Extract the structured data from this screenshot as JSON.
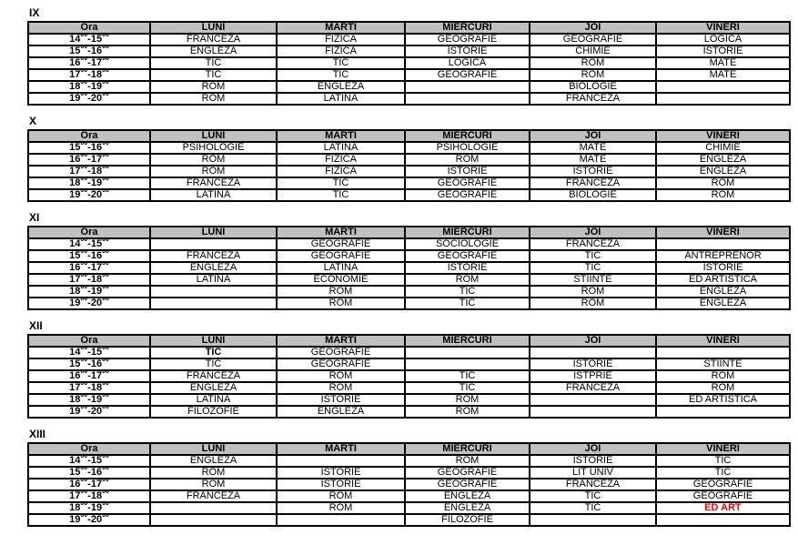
{
  "document": {
    "colors": {
      "header_bg": "#c0c0c0",
      "accent_red": "#ff0000",
      "border": "#000000",
      "text": "#000000"
    },
    "columns": [
      {
        "key": "ora",
        "label": "Ora"
      },
      {
        "key": "luni",
        "label": "LUNI"
      },
      {
        "key": "marti",
        "label": "MARTI"
      },
      {
        "key": "miercuri",
        "label": "MIERCURI"
      },
      {
        "key": "joi",
        "label": "JOI"
      },
      {
        "key": "vineri",
        "label": "VINERI"
      }
    ],
    "time_superscript": "00",
    "time_separator": "-",
    "tables": [
      {
        "label": "IX",
        "rows": [
          {
            "from": "14",
            "to": "15",
            "subjects": [
              "FRANCEZA",
              "FIZICA",
              "GEOGRAFIE",
              "GEOGRAFIE",
              "LOGICA"
            ]
          },
          {
            "from": "15",
            "to": "16",
            "subjects": [
              "ENGLEZA",
              "FIZICA",
              "ISTORIE",
              "CHIMIE",
              "ISTORIE"
            ]
          },
          {
            "from": "16",
            "to": "17",
            "subjects": [
              "TIC",
              "TIC",
              "LOGICA",
              "ROM",
              "MATE"
            ]
          },
          {
            "from": "17",
            "to": "18",
            "subjects": [
              "TIC",
              "TIC",
              "GEOGRAFIE",
              "ROM",
              "MATE"
            ]
          },
          {
            "from": "18",
            "to": "19",
            "subjects": [
              "ROM",
              "ENGLEZA",
              "",
              "BIOLOGIE",
              ""
            ]
          },
          {
            "from": "19",
            "to": "20",
            "subjects": [
              "ROM",
              "LATINA",
              "",
              "FRANCEZA",
              ""
            ]
          }
        ],
        "overrides": []
      },
      {
        "label": "X",
        "rows": [
          {
            "from": "15",
            "to": "16",
            "subjects": [
              "PSIHOLOGIE",
              "LATINA",
              "PSIHOLOGIE",
              "MATE",
              "CHIMIE"
            ]
          },
          {
            "from": "16",
            "to": "17",
            "subjects": [
              "ROM",
              "FIZICA",
              "ROM",
              "MATE",
              "ENGLEZA"
            ]
          },
          {
            "from": "17",
            "to": "18",
            "subjects": [
              "ROM",
              "FIZICA",
              "ISTORIE",
              "ISTORIE",
              "ENGLEZA"
            ]
          },
          {
            "from": "18",
            "to": "19",
            "subjects": [
              "FRANCEZA",
              "TIC",
              "GEOGRAFIE",
              "FRANCEZA",
              "ROM"
            ]
          },
          {
            "from": "19",
            "to": "20",
            "subjects": [
              "LATINA",
              "TIC",
              "GEOGRAFIE",
              "BIOLOGIE",
              "ROM"
            ]
          }
        ],
        "overrides": []
      },
      {
        "label": "XI",
        "rows": [
          {
            "from": "14",
            "to": "15",
            "subjects": [
              "",
              "GEOGRAFIE",
              "SOCIOLOGIE",
              "FRANCEZA",
              ""
            ]
          },
          {
            "from": "15",
            "to": "16",
            "subjects": [
              "FRANCEZA",
              "GEOGRAFIE",
              "GEOGRAFIE",
              "TIC",
              "ANTREPRENOR"
            ]
          },
          {
            "from": "16",
            "to": "17",
            "subjects": [
              "ENGLEZA",
              "LATINA",
              "ISTORIE",
              "TIC",
              "ISTORIE"
            ]
          },
          {
            "from": "17",
            "to": "18",
            "subjects": [
              "LATINA",
              "ECONOMIE",
              "ROM",
              "STIINTE",
              "ED ARTISTICA"
            ]
          },
          {
            "from": "18",
            "to": "19",
            "subjects": [
              "",
              "ROM",
              "TIC",
              "ROM",
              "ENGLEZA"
            ]
          },
          {
            "from": "19",
            "to": "20",
            "subjects": [
              "",
              "ROM",
              "TIC",
              "ROM",
              "ENGLEZA"
            ]
          }
        ],
        "overrides": []
      },
      {
        "label": "XII",
        "rows": [
          {
            "from": "14",
            "to": "15",
            "subjects": [
              "TIC",
              "GEOGRAFIE",
              "",
              "",
              ""
            ]
          },
          {
            "from": "15",
            "to": "16",
            "subjects": [
              "TIC",
              "GEOGRAFIE",
              "",
              "ISTORIE",
              "STIINTE"
            ]
          },
          {
            "from": "16",
            "to": "17",
            "subjects": [
              "FRANCEZA",
              "ROM",
              "TIC",
              "ISTPRIE",
              "ROM"
            ]
          },
          {
            "from": "17",
            "to": "18",
            "subjects": [
              "ENGLEZA",
              "ROM",
              "TIC",
              "FRANCEZA",
              "ROM"
            ]
          },
          {
            "from": "18",
            "to": "19",
            "subjects": [
              "LATINA",
              "ISTORIE",
              "ROM",
              "",
              "ED ARTISTICA"
            ]
          },
          {
            "from": "19",
            "to": "20",
            "subjects": [
              "FILOZOFIE",
              "ENGLEZA",
              "ROM",
              "",
              ""
            ]
          }
        ],
        "overrides": [
          {
            "row": 0,
            "col": 0,
            "style": "bold"
          }
        ]
      },
      {
        "label": "XIII",
        "rows": [
          {
            "from": "14",
            "to": "15",
            "subjects": [
              "ENGLEZA",
              "",
              "ROM",
              "ISTORIE",
              "TIC"
            ]
          },
          {
            "from": "15",
            "to": "16",
            "subjects": [
              "ROM",
              "ISTORIE",
              "GEOGRAFIE",
              "LIT UNIV",
              "TIC"
            ]
          },
          {
            "from": "16",
            "to": "17",
            "subjects": [
              "ROM",
              "ISTORIE",
              "GEOGRAFIE",
              "FRANCEZA",
              "GEOGRAFIE"
            ]
          },
          {
            "from": "17",
            "to": "18",
            "subjects": [
              "FRANCEZA",
              "ROM",
              "ENGLEZA",
              "TIC",
              "GEOGRAFIE"
            ]
          },
          {
            "from": "18",
            "to": "19",
            "subjects": [
              "",
              "ROM",
              "ENGLEZA",
              "TIC",
              "ED ART"
            ]
          },
          {
            "from": "19",
            "to": "20",
            "subjects": [
              "",
              "",
              "FILOZOFIE",
              "",
              ""
            ]
          }
        ],
        "overrides": [
          {
            "row": 4,
            "col": 4,
            "style": "red"
          }
        ]
      }
    ]
  }
}
